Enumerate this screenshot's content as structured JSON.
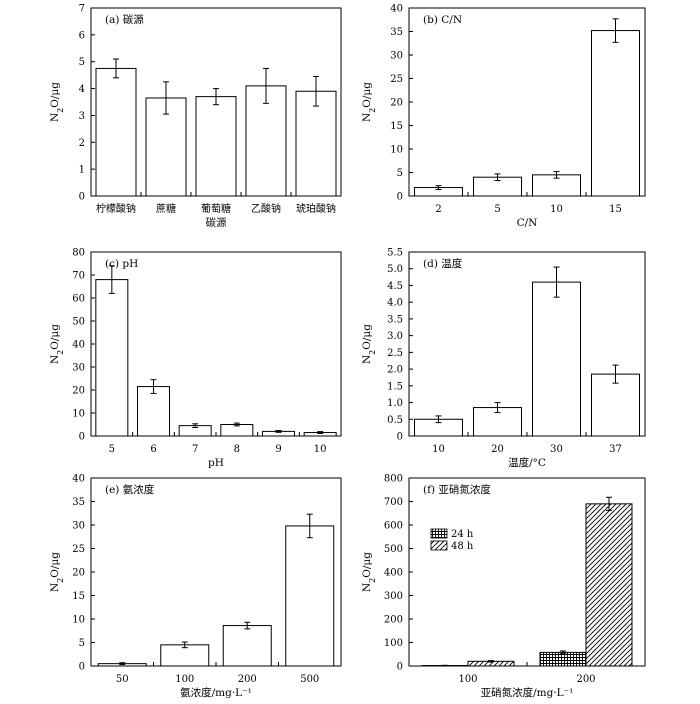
{
  "figure": {
    "colors": {
      "bar_fill": "#ffffff",
      "stroke": "#000000"
    }
  },
  "chart_data": [
    {
      "type": "bar",
      "title": "(a) 碳源",
      "xlabel": "碳源",
      "ylabel": "N2O/μg",
      "ylim": [
        0,
        7
      ],
      "yticks": [
        "0",
        "1",
        "2",
        "3",
        "4",
        "5",
        "6",
        "7"
      ],
      "categories": [
        "柠檬酸钠",
        "蔗糖",
        "葡萄糖",
        "乙酸钠",
        "琥珀酸钠"
      ],
      "values": [
        4.75,
        3.65,
        3.7,
        4.1,
        3.9
      ],
      "errors": [
        0.35,
        0.6,
        0.3,
        0.65,
        0.55
      ]
    },
    {
      "type": "bar",
      "title": "(b) C/N",
      "xlabel": "C/N",
      "ylabel": "N2O/μg",
      "ylim": [
        0,
        40
      ],
      "yticks": [
        "0",
        "5",
        "10",
        "15",
        "20",
        "25",
        "30",
        "35",
        "40"
      ],
      "categories": [
        "2",
        "5",
        "10",
        "15"
      ],
      "values": [
        1.8,
        4.0,
        4.5,
        35.2
      ],
      "errors": [
        0.4,
        0.7,
        0.7,
        2.5
      ]
    },
    {
      "type": "bar",
      "title": "(c) pH",
      "xlabel": "pH",
      "ylabel": "N2O/μg",
      "ylim": [
        0,
        80
      ],
      "yticks": [
        "0",
        "10",
        "20",
        "30",
        "40",
        "50",
        "60",
        "70",
        "80"
      ],
      "categories": [
        "5",
        "6",
        "7",
        "8",
        "9",
        "10"
      ],
      "values": [
        68,
        21.5,
        4.5,
        5.0,
        2.0,
        1.5
      ],
      "errors": [
        6,
        3,
        0.8,
        0.6,
        0.4,
        0.4
      ]
    },
    {
      "type": "bar",
      "title": "(d) 温度",
      "xlabel": "温度/°C",
      "ylabel": "N2O/μg",
      "ylim": [
        0,
        5.5
      ],
      "yticks": [
        "0",
        "0.5",
        "1.0",
        "1.5",
        "2.0",
        "2.5",
        "3.0",
        "3.5",
        "4.0",
        "4.5",
        "5.0",
        "5.5"
      ],
      "categories": [
        "10",
        "20",
        "30",
        "37"
      ],
      "values": [
        0.5,
        0.85,
        4.6,
        1.85
      ],
      "errors": [
        0.1,
        0.15,
        0.45,
        0.27
      ]
    },
    {
      "type": "bar",
      "title": "(e) 氨浓度",
      "xlabel": "氨浓度/mg·L⁻¹",
      "ylabel": "N2O/μg",
      "ylim": [
        0,
        40
      ],
      "yticks": [
        "0",
        "5",
        "10",
        "15",
        "20",
        "25",
        "30",
        "35",
        "40"
      ],
      "categories": [
        "50",
        "100",
        "200",
        "500"
      ],
      "values": [
        0.5,
        4.5,
        8.6,
        29.8
      ],
      "errors": [
        0.2,
        0.6,
        0.7,
        2.5
      ]
    },
    {
      "type": "bar",
      "title": "(f) 亚硝氮浓度",
      "xlabel": "亚硝氮浓度/mg·L⁻¹",
      "ylabel": "N2O/μg",
      "ylim": [
        0,
        800
      ],
      "yticks": [
        "0",
        "100",
        "200",
        "300",
        "400",
        "500",
        "600",
        "700",
        "800"
      ],
      "categories": [
        "100",
        "200"
      ],
      "series": [
        {
          "name": "24 h",
          "values": [
            2,
            58
          ],
          "errors": [
            1,
            6
          ]
        },
        {
          "name": "48 h",
          "values": [
            20,
            690
          ],
          "errors": [
            3,
            28
          ]
        }
      ],
      "legend": "top-left"
    }
  ]
}
